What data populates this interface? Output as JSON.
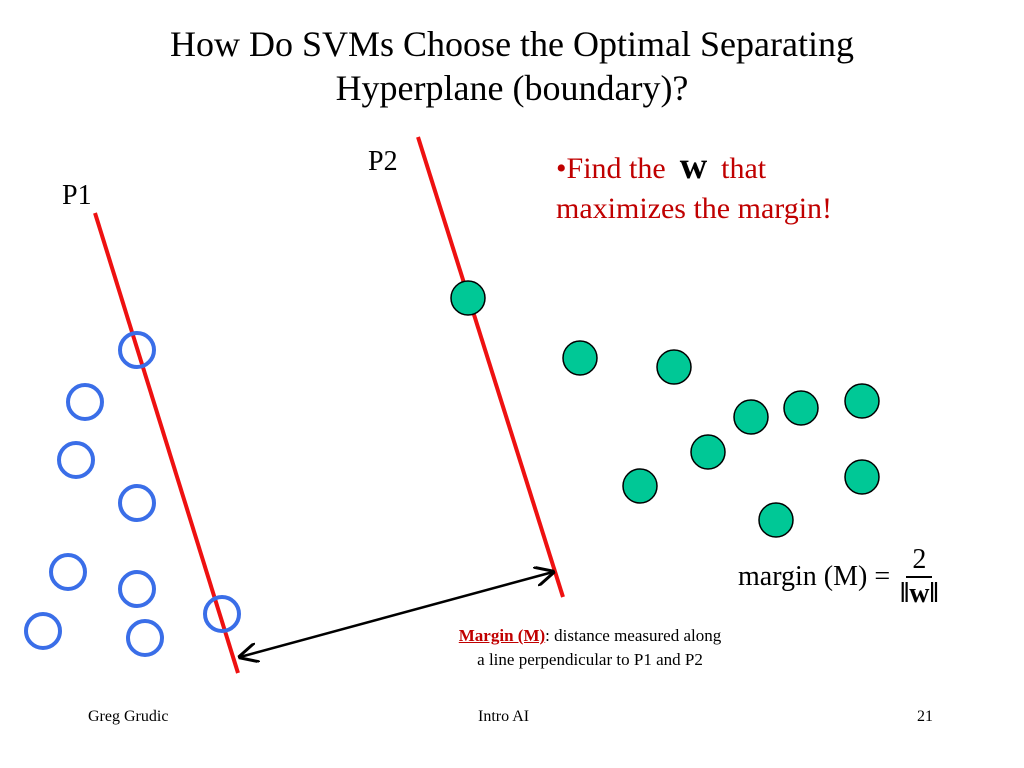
{
  "title_line1": "How Do SVMs Choose the Optimal Separating",
  "title_line2": "Hyperplane (boundary)?",
  "bullet": {
    "prefix": "•Find the",
    "w": "w",
    "suffix": "that",
    "line2": "maximizes the margin!"
  },
  "labels": {
    "p1": "P1",
    "p2": "P2"
  },
  "caption": {
    "term": "Margin (M)",
    "rest": ": distance measured along",
    "line2": "a line perpendicular to P1 and P2"
  },
  "formula": {
    "lhs": "margin (M) =",
    "numerator": "2",
    "denominator": "‖w‖"
  },
  "footer": {
    "author": "Greg Grudic",
    "course": "Intro AI",
    "page": "21"
  },
  "colors": {
    "line": "#ee1111",
    "open": "#3a6ee8",
    "filled": "#00c896",
    "accent": "#c00000"
  }
}
